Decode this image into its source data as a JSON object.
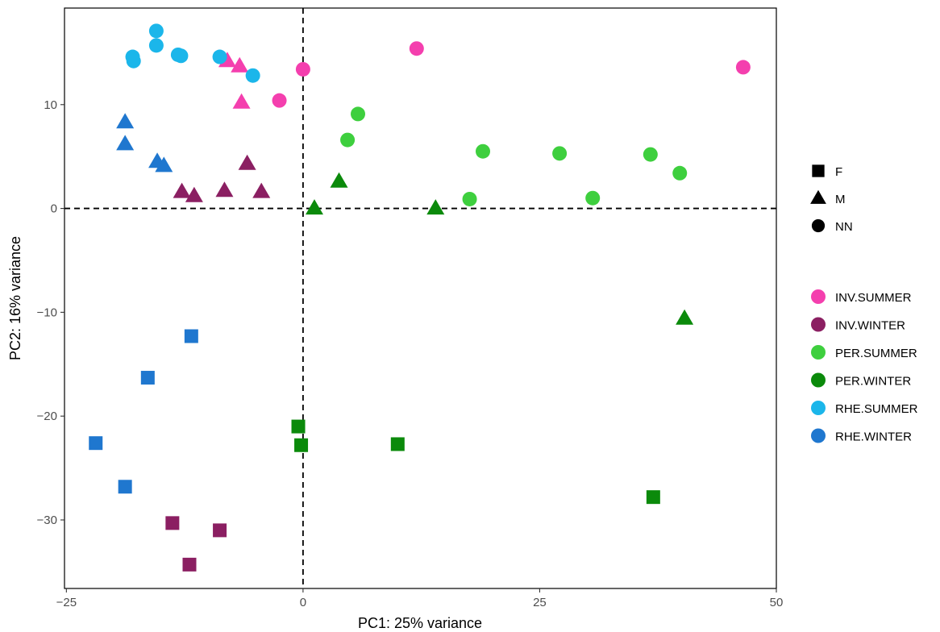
{
  "chart_data": {
    "type": "scatter",
    "xlabel": "PC1: 25% variance",
    "ylabel": "PC2: 16% variance",
    "xlim": [
      -25.2,
      50
    ],
    "ylim": [
      -36.6,
      19.3
    ],
    "xticks": [
      -25,
      0,
      25,
      50
    ],
    "yticks": [
      -30,
      -20,
      -10,
      0,
      10
    ],
    "xtick_labels": [
      "−25",
      "0",
      "25",
      "50"
    ],
    "ytick_labels": [
      "−30",
      "−20",
      "−10",
      "0",
      "10"
    ],
    "reference_lines": {
      "x": 0,
      "y": 0,
      "style": "dashed"
    },
    "grid": false,
    "shape_legend": {
      "position": "right",
      "items": [
        {
          "label": "F",
          "shape": "square"
        },
        {
          "label": "M",
          "shape": "triangle"
        },
        {
          "label": "NN",
          "shape": "circle"
        }
      ]
    },
    "color_legend": {
      "position": "right",
      "items": [
        {
          "label": "INV.SUMMER",
          "color": "#f43fae"
        },
        {
          "label": "INV.WINTER",
          "color": "#8b1f62"
        },
        {
          "label": "PER.SUMMER",
          "color": "#3ecf3e"
        },
        {
          "label": "PER.WINTER",
          "color": "#0b8a0b"
        },
        {
          "label": "RHE.SUMMER",
          "color": "#1bb6ea"
        },
        {
          "label": "RHE.WINTER",
          "color": "#1f77cf"
        }
      ]
    },
    "series": [
      {
        "name": "INV.SUMMER",
        "points": [
          {
            "x": 0,
            "y": 13.4,
            "shape": "NN"
          },
          {
            "x": 12,
            "y": 15.4,
            "shape": "NN"
          },
          {
            "x": -2.5,
            "y": 10.4,
            "shape": "NN"
          },
          {
            "x": 46.5,
            "y": 13.6,
            "shape": "NN"
          },
          {
            "x": -8,
            "y": 14.2,
            "shape": "M"
          },
          {
            "x": -6.7,
            "y": 13.7,
            "shape": "M"
          },
          {
            "x": -6.5,
            "y": 10.2,
            "shape": "M"
          }
        ]
      },
      {
        "name": "INV.WINTER",
        "points": [
          {
            "x": -12.8,
            "y": 1.6,
            "shape": "M"
          },
          {
            "x": -11.5,
            "y": 1.2,
            "shape": "M"
          },
          {
            "x": -8.3,
            "y": 1.7,
            "shape": "M"
          },
          {
            "x": -5.9,
            "y": 4.3,
            "shape": "M"
          },
          {
            "x": -4.4,
            "y": 1.6,
            "shape": "M"
          },
          {
            "x": -13.8,
            "y": -30.3,
            "shape": "F"
          },
          {
            "x": -8.8,
            "y": -31.0,
            "shape": "F"
          },
          {
            "x": -12.0,
            "y": -34.3,
            "shape": "F"
          }
        ]
      },
      {
        "name": "PER.SUMMER",
        "points": [
          {
            "x": 5.8,
            "y": 9.1,
            "shape": "NN"
          },
          {
            "x": 4.7,
            "y": 6.6,
            "shape": "NN"
          },
          {
            "x": 19.0,
            "y": 5.5,
            "shape": "NN"
          },
          {
            "x": 27.1,
            "y": 5.3,
            "shape": "NN"
          },
          {
            "x": 36.7,
            "y": 5.2,
            "shape": "NN"
          },
          {
            "x": 39.8,
            "y": 3.4,
            "shape": "NN"
          },
          {
            "x": 17.6,
            "y": 0.9,
            "shape": "NN"
          },
          {
            "x": 30.6,
            "y": 1.0,
            "shape": "NN"
          }
        ]
      },
      {
        "name": "PER.WINTER",
        "points": [
          {
            "x": 3.8,
            "y": 2.6,
            "shape": "M"
          },
          {
            "x": 1.2,
            "y": 0.0,
            "shape": "M"
          },
          {
            "x": 14.0,
            "y": 0.0,
            "shape": "M"
          },
          {
            "x": 40.3,
            "y": -10.6,
            "shape": "M"
          },
          {
            "x": -0.5,
            "y": -21.0,
            "shape": "F"
          },
          {
            "x": -0.2,
            "y": -22.8,
            "shape": "F"
          },
          {
            "x": 10.0,
            "y": -22.7,
            "shape": "F"
          },
          {
            "x": 37.0,
            "y": -27.8,
            "shape": "F"
          }
        ]
      },
      {
        "name": "RHE.SUMMER",
        "points": [
          {
            "x": -15.5,
            "y": 17.1,
            "shape": "NN"
          },
          {
            "x": -15.5,
            "y": 15.7,
            "shape": "NN"
          },
          {
            "x": -18.0,
            "y": 14.6,
            "shape": "NN"
          },
          {
            "x": -17.9,
            "y": 14.2,
            "shape": "NN"
          },
          {
            "x": -13.2,
            "y": 14.8,
            "shape": "NN"
          },
          {
            "x": -12.9,
            "y": 14.7,
            "shape": "NN"
          },
          {
            "x": -8.8,
            "y": 14.6,
            "shape": "NN"
          },
          {
            "x": -5.3,
            "y": 12.8,
            "shape": "NN"
          }
        ]
      },
      {
        "name": "RHE.WINTER",
        "points": [
          {
            "x": -18.8,
            "y": 8.3,
            "shape": "M"
          },
          {
            "x": -18.8,
            "y": 6.2,
            "shape": "M"
          },
          {
            "x": -15.4,
            "y": 4.5,
            "shape": "M"
          },
          {
            "x": -14.7,
            "y": 4.1,
            "shape": "M"
          },
          {
            "x": -11.8,
            "y": -12.3,
            "shape": "F"
          },
          {
            "x": -16.4,
            "y": -16.3,
            "shape": "F"
          },
          {
            "x": -21.9,
            "y": -22.6,
            "shape": "F"
          },
          {
            "x": -18.8,
            "y": -26.8,
            "shape": "F"
          }
        ]
      }
    ]
  }
}
